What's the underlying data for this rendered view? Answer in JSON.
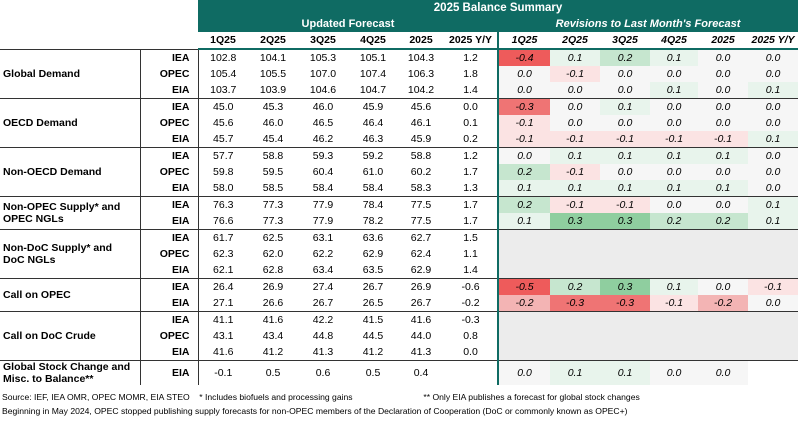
{
  "title": "2025 Balance Summary",
  "sections": {
    "updated": "Updated Forecast",
    "revisions": "Revisions to Last Month's Forecast"
  },
  "columns": [
    "1Q25",
    "2Q25",
    "3Q25",
    "4Q25",
    "2025",
    "2025 Y/Y"
  ],
  "groups": [
    {
      "name": "Global Demand",
      "rows": [
        {
          "src": "IEA",
          "vals": [
            "102.8",
            "104.1",
            "105.3",
            "105.1",
            "104.3",
            "1.2"
          ],
          "rev": [
            "-0.4",
            "0.1",
            "0.2",
            "0.1",
            "0.0",
            "0.0"
          ]
        },
        {
          "src": "OPEC",
          "vals": [
            "105.4",
            "105.5",
            "107.0",
            "107.4",
            "106.3",
            "1.8"
          ],
          "rev": [
            "0.0",
            "-0.1",
            "0.0",
            "0.0",
            "0.0",
            "0.0"
          ]
        },
        {
          "src": "EIA",
          "vals": [
            "103.7",
            "103.9",
            "104.6",
            "104.7",
            "104.2",
            "1.4"
          ],
          "rev": [
            "0.0",
            "0.0",
            "0.0",
            "0.1",
            "0.0",
            "0.1"
          ]
        }
      ]
    },
    {
      "name": "OECD Demand",
      "rows": [
        {
          "src": "IEA",
          "vals": [
            "45.0",
            "45.3",
            "46.0",
            "45.9",
            "45.6",
            "0.0"
          ],
          "rev": [
            "-0.3",
            "0.0",
            "0.1",
            "0.0",
            "0.0",
            "0.0"
          ]
        },
        {
          "src": "OPEC",
          "vals": [
            "45.6",
            "46.0",
            "46.5",
            "46.4",
            "46.1",
            "0.1"
          ],
          "rev": [
            "-0.1",
            "0.0",
            "0.0",
            "0.0",
            "0.0",
            "0.0"
          ]
        },
        {
          "src": "EIA",
          "vals": [
            "45.7",
            "45.4",
            "46.2",
            "46.3",
            "45.9",
            "0.2"
          ],
          "rev": [
            "-0.1",
            "-0.1",
            "-0.1",
            "-0.1",
            "-0.1",
            "0.1"
          ]
        }
      ]
    },
    {
      "name": "Non-OECD Demand",
      "rows": [
        {
          "src": "IEA",
          "vals": [
            "57.7",
            "58.8",
            "59.3",
            "59.2",
            "58.8",
            "1.2"
          ],
          "rev": [
            "0.0",
            "0.1",
            "0.1",
            "0.1",
            "0.1",
            "0.0"
          ]
        },
        {
          "src": "OPEC",
          "vals": [
            "59.8",
            "59.5",
            "60.4",
            "61.0",
            "60.2",
            "1.7"
          ],
          "rev": [
            "0.2",
            "-0.1",
            "0.0",
            "0.0",
            "0.0",
            "0.0"
          ]
        },
        {
          "src": "EIA",
          "vals": [
            "58.0",
            "58.5",
            "58.4",
            "58.4",
            "58.3",
            "1.3"
          ],
          "rev": [
            "0.1",
            "0.1",
            "0.1",
            "0.1",
            "0.1",
            "0.0"
          ]
        }
      ]
    },
    {
      "name": "Non-OPEC Supply* and OPEC NGLs",
      "rows": [
        {
          "src": "IEA",
          "vals": [
            "76.3",
            "77.3",
            "77.9",
            "78.4",
            "77.5",
            "1.7"
          ],
          "rev": [
            "0.2",
            "-0.1",
            "-0.1",
            "0.0",
            "0.0",
            "0.1"
          ]
        },
        {
          "src": "EIA",
          "vals": [
            "76.6",
            "77.3",
            "77.9",
            "78.2",
            "77.5",
            "1.7"
          ],
          "rev": [
            "0.1",
            "0.3",
            "0.3",
            "0.2",
            "0.2",
            "0.1"
          ]
        }
      ]
    },
    {
      "name": "Non-DoC Supply* and DoC NGLs",
      "rows": [
        {
          "src": "IEA",
          "vals": [
            "61.7",
            "62.5",
            "63.1",
            "63.6",
            "62.7",
            "1.5"
          ],
          "rev": null
        },
        {
          "src": "OPEC",
          "vals": [
            "62.3",
            "62.0",
            "62.2",
            "62.9",
            "62.4",
            "1.1"
          ],
          "rev": null
        },
        {
          "src": "EIA",
          "vals": [
            "62.1",
            "62.8",
            "63.4",
            "63.5",
            "62.9",
            "1.4"
          ],
          "rev": null
        }
      ]
    },
    {
      "name": "Call on OPEC",
      "rows": [
        {
          "src": "IEA",
          "vals": [
            "26.4",
            "26.9",
            "27.4",
            "26.7",
            "26.9",
            "-0.6"
          ],
          "rev": [
            "-0.5",
            "0.2",
            "0.3",
            "0.1",
            "0.0",
            "-0.1"
          ]
        },
        {
          "src": "EIA",
          "vals": [
            "27.1",
            "26.6",
            "26.7",
            "26.5",
            "26.7",
            "-0.2"
          ],
          "rev": [
            "-0.2",
            "-0.3",
            "-0.3",
            "-0.1",
            "-0.2",
            "0.0"
          ]
        }
      ]
    },
    {
      "name": "Call on DoC Crude",
      "rows": [
        {
          "src": "IEA",
          "vals": [
            "41.1",
            "41.6",
            "42.2",
            "41.5",
            "41.6",
            "-0.3"
          ],
          "rev": null
        },
        {
          "src": "OPEC",
          "vals": [
            "43.1",
            "43.4",
            "44.8",
            "44.5",
            "44.0",
            "0.8"
          ],
          "rev": null
        },
        {
          "src": "EIA",
          "vals": [
            "41.6",
            "41.2",
            "41.3",
            "41.2",
            "41.3",
            "0.0"
          ],
          "rev": null
        }
      ]
    },
    {
      "name": "Global Stock Change and Misc. to Balance**",
      "rows": [
        {
          "src": "EIA",
          "vals": [
            "-0.1",
            "0.5",
            "0.6",
            "0.5",
            "0.4",
            ""
          ],
          "rev": [
            "0.0",
            "0.1",
            "0.1",
            "0.0",
            "0.0",
            ""
          ]
        }
      ]
    }
  ],
  "colors": {
    "header": "#0f6b63",
    "pos1": "#e8f4ec",
    "pos2": "#c6e6cf",
    "pos3": "#8fce9f",
    "neg1": "#fbe3e3",
    "neg2": "#f3b4b4",
    "neg3": "#ef7474",
    "red": "#ee5b5b"
  },
  "footnotes": {
    "line1_a": "Source: IEF, IEA OMR, OPEC MOMR, EIA STEO",
    "line1_b": "* Includes biofuels and processing gains",
    "line1_c": "** Only EIA publishes a forecast for global stock changes",
    "line2": "Beginning in May 2024, OPEC stopped publishing supply forecasts for non-OPEC members of the Declaration of Cooperation (DoC or commonly known as OPEC+)"
  }
}
